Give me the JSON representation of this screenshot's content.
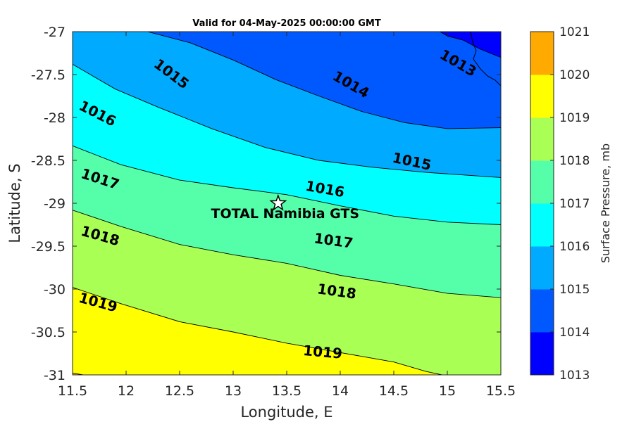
{
  "chart_data": {
    "type": "contour",
    "title": "Valid for 04-May-2025 00:00:00 GMT",
    "xlabel": "Longitude, E",
    "ylabel": "Latitude, S",
    "xlim": [
      11.5,
      15.5
    ],
    "ylim": [
      -31,
      -27
    ],
    "xticks": [
      "11.5",
      "12",
      "12.5",
      "13",
      "13.5",
      "14",
      "14.5",
      "15",
      "15.5"
    ],
    "yticks": [
      "-27",
      "-27.5",
      "-28",
      "-28.5",
      "-29",
      "-29.5",
      "-30",
      "-30.5",
      "-31"
    ],
    "colorbar": {
      "label": "Surface Pressure, mb",
      "levels": [
        1013,
        1014,
        1015,
        1016,
        1017,
        1018,
        1019,
        1020,
        1021
      ],
      "tick_labels": [
        "1013",
        "1014",
        "1015",
        "1016",
        "1017",
        "1018",
        "1019",
        "1020",
        "1021"
      ],
      "colors": [
        "#0000ff",
        "#0059ff",
        "#00aaff",
        "#00ffff",
        "#55ffaa",
        "#aaff55",
        "#ffff00",
        "#ffaa00",
        "#ff5500"
      ]
    },
    "contours": [
      {
        "level": 1013,
        "points": [
          [
            14.93,
            -27
          ],
          [
            15.0,
            -27.05
          ],
          [
            15.15,
            -27.1
          ],
          [
            15.3,
            -27.2
          ],
          [
            15.5,
            -27.3
          ]
        ]
      },
      {
        "level": 1014,
        "points": [
          [
            12.2,
            -27
          ],
          [
            12.6,
            -27.13
          ],
          [
            13.0,
            -27.33
          ],
          [
            13.4,
            -27.56
          ],
          [
            13.8,
            -27.75
          ],
          [
            14.2,
            -27.93
          ],
          [
            14.6,
            -28.06
          ],
          [
            15.0,
            -28.13
          ],
          [
            15.5,
            -28.12
          ]
        ]
      },
      {
        "level": 1015,
        "points": [
          [
            11.5,
            -27.38
          ],
          [
            11.9,
            -27.67
          ],
          [
            12.3,
            -27.88
          ],
          [
            12.8,
            -28.13
          ],
          [
            13.3,
            -28.35
          ],
          [
            13.8,
            -28.5
          ],
          [
            14.3,
            -28.58
          ],
          [
            14.8,
            -28.64
          ],
          [
            15.5,
            -28.7
          ]
        ]
      },
      {
        "level": 1016,
        "points": [
          [
            11.5,
            -28.33
          ],
          [
            11.95,
            -28.55
          ],
          [
            12.5,
            -28.73
          ],
          [
            13.0,
            -28.82
          ],
          [
            13.5,
            -28.9
          ],
          [
            14.0,
            -29.03
          ],
          [
            14.5,
            -29.15
          ],
          [
            15.0,
            -29.22
          ],
          [
            15.5,
            -29.25
          ]
        ]
      },
      {
        "level": 1017,
        "points": [
          [
            11.5,
            -29.08
          ],
          [
            11.95,
            -29.27
          ],
          [
            12.5,
            -29.48
          ],
          [
            13.0,
            -29.6
          ],
          [
            13.5,
            -29.7
          ],
          [
            14.0,
            -29.84
          ],
          [
            14.5,
            -29.94
          ],
          [
            15.0,
            -30.05
          ],
          [
            15.5,
            -30.1
          ]
        ]
      },
      {
        "level": 1018,
        "points": [
          [
            11.5,
            -29.98
          ],
          [
            11.95,
            -30.17
          ],
          [
            12.5,
            -30.38
          ],
          [
            13.0,
            -30.5
          ],
          [
            13.5,
            -30.63
          ],
          [
            14.0,
            -30.74
          ],
          [
            14.5,
            -30.85
          ],
          [
            14.8,
            -30.96
          ],
          [
            14.95,
            -31
          ]
        ]
      },
      {
        "level": 1019,
        "points": [
          [
            11.5,
            -30.98
          ],
          [
            11.6,
            -31
          ]
        ]
      }
    ],
    "contour_labels": [
      {
        "text": "1013",
        "x": 14.92,
        "y": -27.3,
        "angle": 30
      },
      {
        "text": "1014",
        "x": 13.92,
        "y": -27.55,
        "angle": 30
      },
      {
        "text": "1015",
        "x": 12.25,
        "y": -27.4,
        "angle": 37
      },
      {
        "text": "1015",
        "x": 14.48,
        "y": -28.52,
        "angle": 12
      },
      {
        "text": "1016",
        "x": 11.55,
        "y": -27.9,
        "angle": 27
      },
      {
        "text": "1016",
        "x": 13.67,
        "y": -28.85,
        "angle": 10
      },
      {
        "text": "1017",
        "x": 11.57,
        "y": -28.7,
        "angle": 18
      },
      {
        "text": "1017",
        "x": 13.75,
        "y": -29.46,
        "angle": 8
      },
      {
        "text": "1018",
        "x": 11.57,
        "y": -29.37,
        "angle": 16
      },
      {
        "text": "1018",
        "x": 13.78,
        "y": -30.05,
        "angle": 8
      },
      {
        "text": "1019",
        "x": 11.55,
        "y": -30.15,
        "angle": 15
      },
      {
        "text": "1019",
        "x": 13.65,
        "y": -30.77,
        "angle": 5
      }
    ],
    "site": {
      "name": "TOTAL Namibia GTS",
      "lon": 13.42,
      "lat": -29.0
    }
  }
}
